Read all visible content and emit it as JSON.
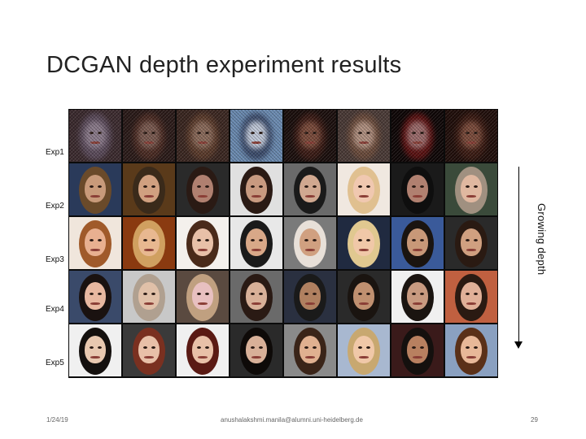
{
  "slide": {
    "title": "DCGAN depth experiment results",
    "row_labels": [
      "Exp1",
      "Exp2",
      "Exp3",
      "Exp4",
      "Exp5"
    ],
    "arrow_label": "Growing depth",
    "footer": {
      "date": "1/24/19",
      "email": "anushalakshmi.manila@alumni.uni-heidelberg.de",
      "page": "29"
    }
  },
  "grid": {
    "rows": 5,
    "cols": 8,
    "tiles": [
      {
        "bg": "#3b2a2e",
        "hair": "#5a4a5a",
        "skin": "#8a7a8a",
        "noisy": true
      },
      {
        "bg": "#2a1a18",
        "hair": "#4a2a22",
        "skin": "#7a5a50",
        "noisy": true
      },
      {
        "bg": "#3a2620",
        "hair": "#5a3a2a",
        "skin": "#8a6a5a",
        "noisy": true
      },
      {
        "bg": "#6a8ab0",
        "hair": "#3a4a6a",
        "skin": "#c0c8d8",
        "noisy": true
      },
      {
        "bg": "#1a0e0c",
        "hair": "#3a1a14",
        "skin": "#7a4a3a",
        "noisy": true
      },
      {
        "bg": "#4a3a36",
        "hair": "#6a4a3a",
        "skin": "#b09080",
        "noisy": true
      },
      {
        "bg": "#0e0606",
        "hair": "#5a1010",
        "skin": "#9a6a6a",
        "noisy": true
      },
      {
        "bg": "#200e0a",
        "hair": "#3a1a12",
        "skin": "#7a4a3a",
        "noisy": true
      },
      {
        "bg": "#2a3a5a",
        "hair": "#6a4a2a",
        "skin": "#c89a7a",
        "noisy": false
      },
      {
        "bg": "#5a3a1a",
        "hair": "#3a2a1a",
        "skin": "#d0a080",
        "noisy": false
      },
      {
        "bg": "#2a2a2a",
        "hair": "#2a1a14",
        "skin": "#b08070",
        "noisy": false
      },
      {
        "bg": "#e0e0e0",
        "hair": "#2a1a14",
        "skin": "#c89a80",
        "noisy": false
      },
      {
        "bg": "#6a6a6a",
        "hair": "#1a1a1a",
        "skin": "#d0a890",
        "noisy": false
      },
      {
        "bg": "#f0e8e0",
        "hair": "#e0c090",
        "skin": "#f0c8b0",
        "noisy": false
      },
      {
        "bg": "#1a1a1a",
        "hair": "#0e0e0e",
        "skin": "#b08070",
        "noisy": false
      },
      {
        "bg": "#3a4a3a",
        "hair": "#a09080",
        "skin": "#e0b8a0",
        "noisy": false
      },
      {
        "bg": "#f0e6dc",
        "hair": "#a05a2a",
        "skin": "#e8b090",
        "noisy": false
      },
      {
        "bg": "#8a3a10",
        "hair": "#d0a060",
        "skin": "#e8b890",
        "noisy": false
      },
      {
        "bg": "#f4f0ec",
        "hair": "#4a2a1a",
        "skin": "#e8c0a8",
        "noisy": false
      },
      {
        "bg": "#e8e8e8",
        "hair": "#1a1a1a",
        "skin": "#d8a888",
        "noisy": false
      },
      {
        "bg": "#7a7a7a",
        "hair": "#e8e0d8",
        "skin": "#d0a080",
        "noisy": false
      },
      {
        "bg": "#202a40",
        "hair": "#e0c890",
        "skin": "#f0c8a8",
        "noisy": false
      },
      {
        "bg": "#3a5a9a",
        "hair": "#1a1410",
        "skin": "#c89878",
        "noisy": false
      },
      {
        "bg": "#2a2a2a",
        "hair": "#2a1a12",
        "skin": "#d0a080",
        "noisy": false
      },
      {
        "bg": "#3a4a6a",
        "hair": "#1a1210",
        "skin": "#e8b8a0",
        "noisy": false
      },
      {
        "bg": "#c8c8c8",
        "hair": "#b0a090",
        "skin": "#e0c0a8",
        "noisy": false
      },
      {
        "bg": "#5a4a40",
        "hair": "#c0a080",
        "skin": "#e8c0c0",
        "noisy": false
      },
      {
        "bg": "#6a6a6a",
        "hair": "#2a1a14",
        "skin": "#d8b098",
        "noisy": false
      },
      {
        "bg": "#2a3040",
        "hair": "#1a1a1a",
        "skin": "#b08060",
        "noisy": false
      },
      {
        "bg": "#2a2a2a",
        "hair": "#1a1410",
        "skin": "#c09070",
        "noisy": false
      },
      {
        "bg": "#f0f0f0",
        "hair": "#1a1410",
        "skin": "#c89a80",
        "noisy": false
      },
      {
        "bg": "#c06040",
        "hair": "#2a1a12",
        "skin": "#e0b098",
        "noisy": false
      },
      {
        "bg": "#f0f0f0",
        "hair": "#14100e",
        "skin": "#e8c8b0",
        "noisy": false
      },
      {
        "bg": "#3a3a3a",
        "hair": "#7a3020",
        "skin": "#e8c0a8",
        "noisy": false
      },
      {
        "bg": "#f0f0f0",
        "hair": "#5a1a14",
        "skin": "#e8c0a8",
        "noisy": false
      },
      {
        "bg": "#2a2a2a",
        "hair": "#0e0a08",
        "skin": "#d8b098",
        "noisy": false
      },
      {
        "bg": "#8a8a8a",
        "hair": "#3a2418",
        "skin": "#e0b090",
        "noisy": false
      },
      {
        "bg": "#a8b8d0",
        "hair": "#c8a870",
        "skin": "#f0c8a8",
        "noisy": false
      },
      {
        "bg": "#3a1a1a",
        "hair": "#14100e",
        "skin": "#b88060",
        "noisy": false
      },
      {
        "bg": "#8aa0c0",
        "hair": "#5a3018",
        "skin": "#e8b898",
        "noisy": false
      }
    ]
  }
}
